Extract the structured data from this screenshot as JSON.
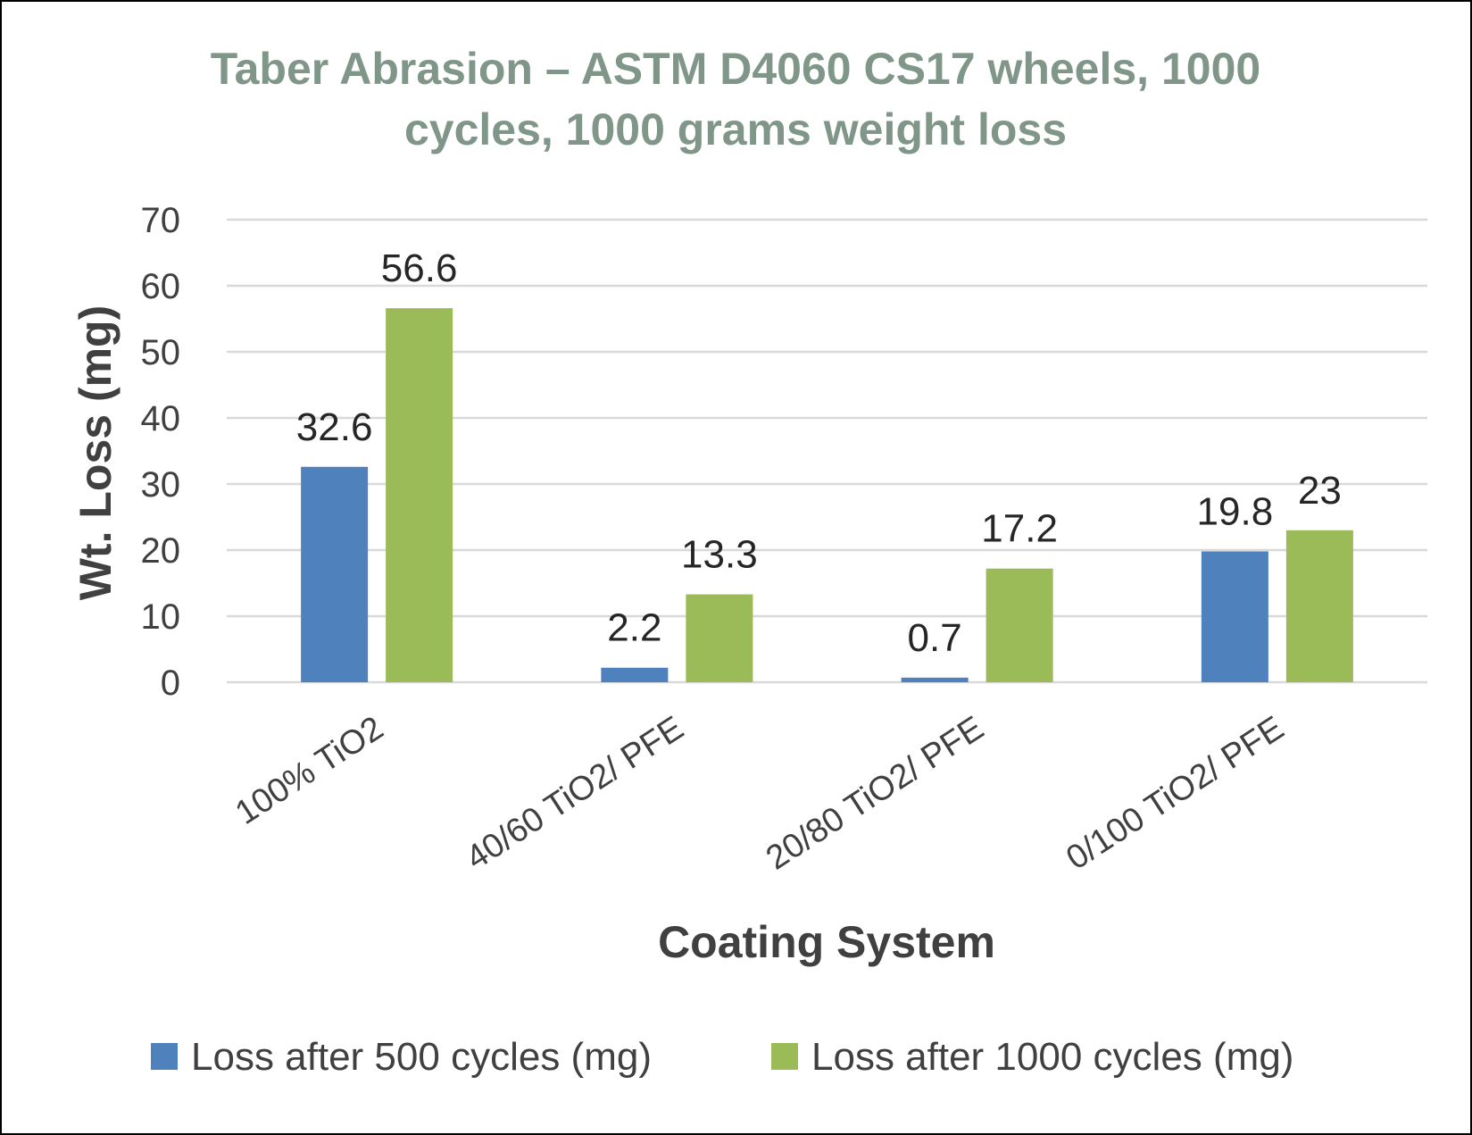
{
  "chart_data": {
    "type": "bar",
    "title_lines": [
      "Taber Abrasion – ASTM D4060   CS17 wheels, 1000",
      "cycles, 1000 grams weight loss"
    ],
    "title_color": "#7f9689",
    "xlabel": "Coating System",
    "ylabel": "Wt. Loss (mg)",
    "ylim": [
      0,
      70
    ],
    "yticks": [
      0,
      10,
      20,
      30,
      40,
      50,
      60,
      70
    ],
    "grid": true,
    "legend_position": "bottom",
    "categories": [
      "100% TiO2",
      "40/60 TiO2/ PFE",
      "20/80 TiO2/ PFE",
      "0/100 TiO2/ PFE"
    ],
    "series": [
      {
        "name": "Loss after 500 cycles (mg)",
        "color": "#4f81bd",
        "values": [
          32.6,
          2.2,
          0.7,
          19.8
        ],
        "labels": [
          "32.6",
          "2.2",
          "0.7",
          "19.8"
        ]
      },
      {
        "name": "Loss after 1000 cycles (mg)",
        "color": "#9bbb59",
        "values": [
          56.6,
          13.3,
          17.2,
          23
        ],
        "labels": [
          "56.6",
          "13.3",
          "17.2",
          "23"
        ]
      }
    ]
  }
}
